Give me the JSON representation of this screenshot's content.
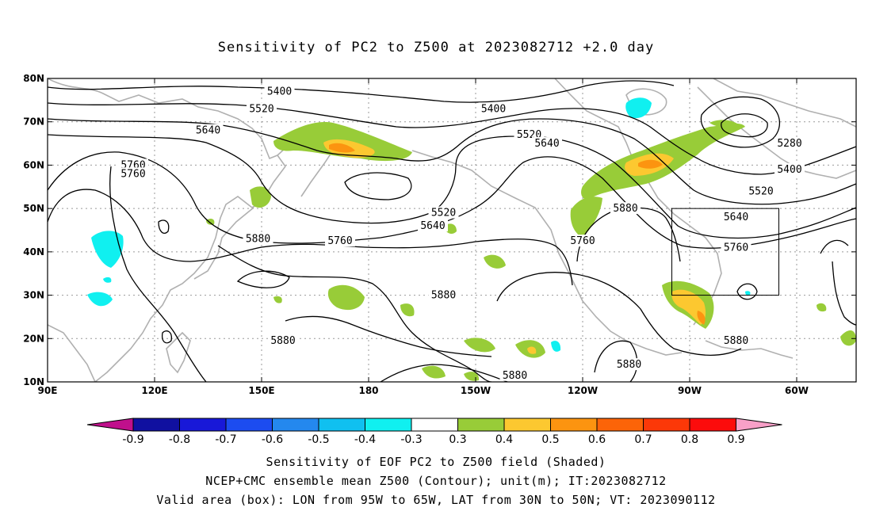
{
  "title": "Sensitivity of PC2 to Z500 at 2023082712 +2.0 day",
  "map": {
    "lat_labels": [
      "80N",
      "70N",
      "60N",
      "50N",
      "40N",
      "30N",
      "20N",
      "10N"
    ],
    "lon_labels": [
      "90E",
      "120E",
      "150E",
      "180",
      "150W",
      "120W",
      "90W",
      "60W"
    ],
    "valid_box": {
      "lon_from": "95W",
      "lon_to": "65W",
      "lat_from": "30N",
      "lat_to": "50N"
    },
    "contour_labels": [
      {
        "text": "5400",
        "lon": 155,
        "lat": 77
      },
      {
        "text": "5400",
        "lon": 215,
        "lat": 73
      },
      {
        "text": "5520",
        "lon": 150,
        "lat": 73
      },
      {
        "text": "5520",
        "lon": 225,
        "lat": 67
      },
      {
        "text": "5640",
        "lon": 135,
        "lat": 68
      },
      {
        "text": "5640",
        "lon": 230,
        "lat": 65
      },
      {
        "text": "5760",
        "lon": 114,
        "lat": 60
      },
      {
        "text": "5760",
        "lon": 114,
        "lat": 58
      },
      {
        "text": "5520",
        "lon": 201,
        "lat": 49
      },
      {
        "text": "5640",
        "lon": 198,
        "lat": 46
      },
      {
        "text": "5760",
        "lon": 172,
        "lat": 42.5
      },
      {
        "text": "5760",
        "lon": 240,
        "lat": 42.5
      },
      {
        "text": "5880",
        "lon": 149,
        "lat": 43
      },
      {
        "text": "5880",
        "lon": 252,
        "lat": 50
      },
      {
        "text": "5880",
        "lon": 201,
        "lat": 30
      },
      {
        "text": "5880",
        "lon": 156,
        "lat": 19.5
      },
      {
        "text": "5880",
        "lon": 283,
        "lat": 19.5
      },
      {
        "text": "5880",
        "lon": 253,
        "lat": 14
      },
      {
        "text": "5880",
        "lon": 221,
        "lat": 11.5
      },
      {
        "text": "5640",
        "lon": 283,
        "lat": 48
      },
      {
        "text": "5760",
        "lon": 283,
        "lat": 41
      },
      {
        "text": "5280",
        "lon": 298,
        "lat": 65
      },
      {
        "text": "5400",
        "lon": 298,
        "lat": 59
      },
      {
        "text": "5520",
        "lon": 290,
        "lat": 54
      }
    ]
  },
  "colorbar": {
    "labels": [
      "-0.9",
      "-0.8",
      "-0.7",
      "-0.6",
      "-0.5",
      "-0.4",
      "-0.3",
      "0.3",
      "0.4",
      "0.5",
      "0.6",
      "0.7",
      "0.8",
      "0.9"
    ],
    "colors": [
      "#c0108c",
      "#1010a0",
      "#1818d8",
      "#1c4cf0",
      "#2488ee",
      "#10c0f0",
      "#10f0f0",
      "#ffffff",
      "#98cc38",
      "#fcc830",
      "#fc9410",
      "#fc6408",
      "#fc3808",
      "#fc0c0c",
      "#f8a0c8"
    ]
  },
  "captions": [
    "Sensitivity of EOF PC2 to Z500 field (Shaded)",
    "NCEP+CMC ensemble mean Z500 (Contour); unit(m); IT:2023082712",
    "Valid area (box): LON from 95W to 65W, LAT from 30N to 50N; VT: 2023090112"
  ]
}
